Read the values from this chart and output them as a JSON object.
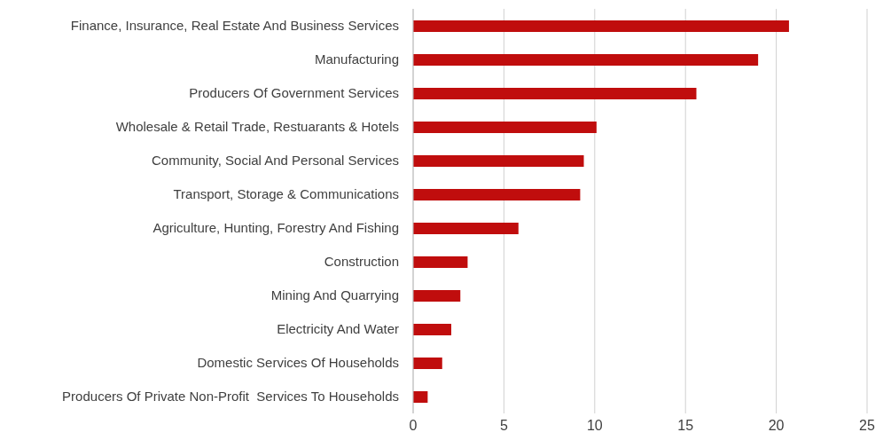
{
  "chart_data": {
    "type": "bar",
    "orientation": "horizontal",
    "categories": [
      "Finance, Insurance, Real Estate And Business Services",
      "Manufacturing",
      "Producers Of Government Services",
      "Wholesale & Retail Trade, Restuarants & Hotels",
      "Community, Social And Personal Services",
      "Transport, Storage & Communications",
      "Agriculture, Hunting, Forestry And Fishing",
      "Construction",
      "Mining And Quarrying",
      "Electricity And Water",
      "Domestic Services Of Households",
      "Producers Of Private Non-Profit  Services To Households"
    ],
    "values": [
      20.7,
      19.0,
      15.6,
      10.1,
      9.4,
      9.2,
      5.8,
      3.0,
      2.6,
      2.1,
      1.6,
      0.8
    ],
    "color": "#c00d0d",
    "xlim": [
      0,
      25
    ],
    "xticks": [
      0,
      5,
      10,
      15,
      20,
      25
    ],
    "grid": "x"
  }
}
